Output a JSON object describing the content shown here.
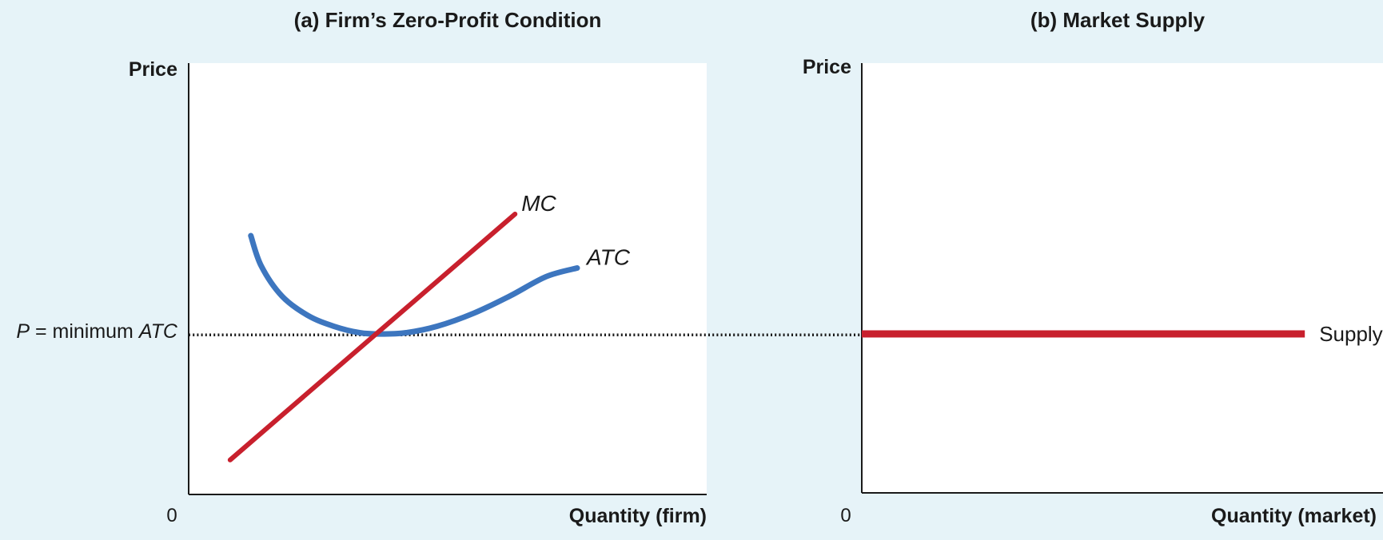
{
  "colors": {
    "background": "#e6f3f8",
    "panel": "#ffffff",
    "mc": "#c8202d",
    "atc": "#3d76bf",
    "supply": "#c8202d",
    "axis": "#1a1a1a"
  },
  "chart_data": [
    {
      "type": "line",
      "panel": "a",
      "title": "(a) Firm’s Zero-Profit Condition",
      "ylabel": "Price",
      "xlabel": "Quantity (firm)",
      "origin_label": "0",
      "xlim": [
        0,
        100
      ],
      "ylim": [
        0,
        100
      ],
      "grid": false,
      "series": [
        {
          "name": "MC",
          "color": "#c8202d",
          "points": [
            [
              8,
              8
            ],
            [
              63,
              65
            ]
          ]
        },
        {
          "name": "ATC",
          "color": "#3d76bf",
          "points": [
            [
              12,
              60
            ],
            [
              14,
              53
            ],
            [
              18,
              46
            ],
            [
              23,
              41.5
            ],
            [
              28,
              39
            ],
            [
              33,
              37.5
            ],
            [
              37,
              37.2
            ],
            [
              42,
              37.5
            ],
            [
              48,
              39
            ],
            [
              55,
              42
            ],
            [
              62,
              46
            ],
            [
              69,
              50.5
            ],
            [
              75,
              52.5
            ]
          ]
        }
      ],
      "price_line": {
        "label_prefix": "P",
        "label_eq": " = minimum ",
        "label_suffix": "ATC",
        "value": 37
      }
    },
    {
      "type": "line",
      "panel": "b",
      "title": "(b) Market Supply",
      "ylabel": "Price",
      "xlabel": "Quantity (market)",
      "origin_label": "0",
      "xlim": [
        0,
        100
      ],
      "ylim": [
        0,
        100
      ],
      "grid": false,
      "series": [
        {
          "name": "Supply",
          "color": "#c8202d",
          "points": [
            [
              0,
              37
            ],
            [
              85,
              37
            ]
          ]
        }
      ]
    }
  ]
}
